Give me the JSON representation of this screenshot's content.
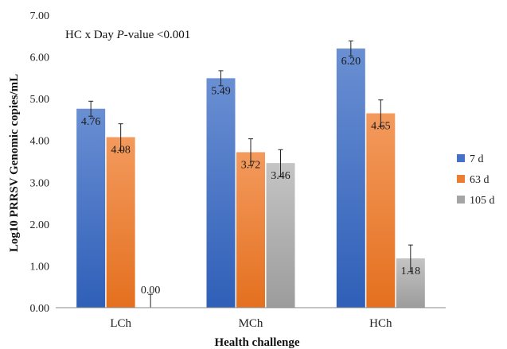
{
  "chart_data": {
    "type": "bar",
    "categories": [
      "LCh",
      "MCh",
      "HCh"
    ],
    "series": [
      {
        "name": "7 d",
        "values": [
          4.76,
          5.49,
          6.2
        ],
        "errors": [
          0.18,
          0.18,
          0.18
        ],
        "labels": [
          "4.76",
          "5.49",
          "6.20"
        ]
      },
      {
        "name": "63 d",
        "values": [
          4.08,
          3.72,
          4.65
        ],
        "errors": [
          0.32,
          0.32,
          0.32
        ],
        "labels": [
          "4.08",
          "3.72",
          "4.65"
        ]
      },
      {
        "name": "105 d",
        "values": [
          0.0,
          3.46,
          1.18
        ],
        "errors": [
          0.32,
          0.32,
          0.32
        ],
        "labels": [
          "0.00",
          "3.46",
          "1.18"
        ]
      }
    ],
    "xlabel": "Health challenge",
    "ylabel": "Log10 PRRSV Genomic copies/mL",
    "ylim": [
      0,
      7
    ],
    "yticks": [
      "0.00",
      "1.00",
      "2.00",
      "3.00",
      "4.00",
      "5.00",
      "6.00",
      "7.00"
    ],
    "annotation": {
      "prefix": "HC x Day ",
      "italic": "P",
      "suffix": "-value <0.001"
    },
    "grid": false,
    "legend_position": "right",
    "colors": {
      "7 d": "#4472c4",
      "63 d": "#ed7d31",
      "105 d": "#a5a5a5"
    }
  }
}
